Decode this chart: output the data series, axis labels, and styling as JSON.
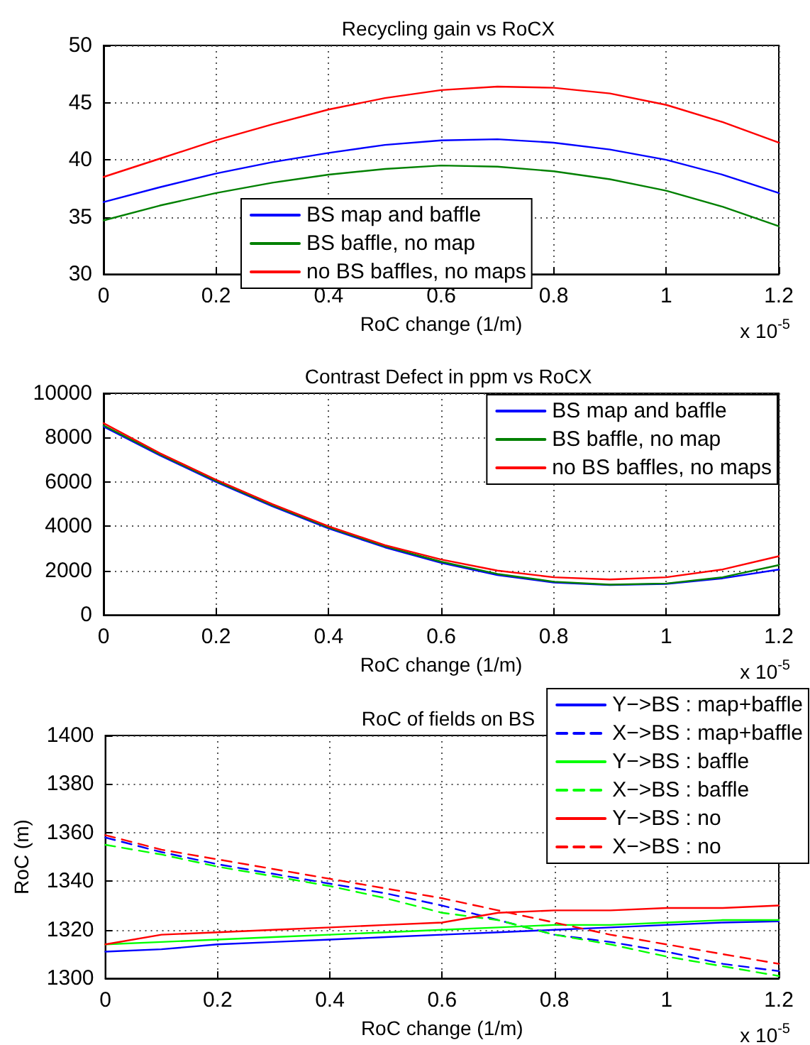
{
  "chart_data": [
    {
      "type": "line",
      "title": "Recycling gain vs RoCX",
      "xlabel": "RoC change (1/m)",
      "annotations": [
        "x 10$^{-5}$"
      ],
      "x": [
        0,
        0.1,
        0.2,
        0.3,
        0.4,
        0.5,
        0.6,
        0.7,
        0.8,
        0.9,
        1,
        1.1,
        1.2
      ],
      "series": [
        {
          "name": "BS map and baffle",
          "color": "#0000ff",
          "values": [
            36.3,
            37.6,
            38.8,
            39.8,
            40.6,
            41.3,
            41.7,
            41.8,
            41.5,
            40.9,
            40.0,
            38.7,
            37.1
          ]
        },
        {
          "name": "BS baffle, no map",
          "color": "#008000",
          "values": [
            34.7,
            36.0,
            37.1,
            38.0,
            38.7,
            39.2,
            39.5,
            39.4,
            39.0,
            38.3,
            37.3,
            35.9,
            34.2
          ]
        },
        {
          "name": "no BS baffles, no maps",
          "color": "#ff0000",
          "values": [
            38.5,
            40.1,
            41.7,
            43.1,
            44.4,
            45.4,
            46.1,
            46.4,
            46.3,
            45.8,
            44.8,
            43.3,
            41.5
          ]
        }
      ],
      "xlim": [
        0,
        1.2
      ],
      "xticks": [
        0,
        0.2,
        0.4,
        0.6,
        0.8,
        1,
        1.2
      ],
      "ylim": [
        30,
        50
      ],
      "yticks": [
        30,
        35,
        40,
        45,
        50
      ],
      "grid": true,
      "legend": "bottom",
      "marker": "none",
      "line_style": "solid"
    },
    {
      "type": "line",
      "title": "Contrast Defect in ppm vs RoCX",
      "xlabel": "RoC change (1/m)",
      "annotations": [
        "x 10$^{-5}$"
      ],
      "x": [
        0,
        0.1,
        0.2,
        0.3,
        0.4,
        0.5,
        0.6,
        0.7,
        0.8,
        0.9,
        1,
        1.1,
        1.2
      ],
      "series": [
        {
          "name": "BS map and baffle",
          "color": "#0000ff",
          "values": [
            8500,
            7200,
            6000,
            4900,
            3900,
            3050,
            2350,
            1800,
            1460,
            1350,
            1400,
            1650,
            2050
          ]
        },
        {
          "name": "BS baffle, no map",
          "color": "#008000",
          "values": [
            8550,
            7250,
            6050,
            4950,
            3950,
            3100,
            2400,
            1850,
            1500,
            1370,
            1420,
            1700,
            2250
          ]
        },
        {
          "name": "no BS baffles, no maps",
          "color": "#ff0000",
          "values": [
            8650,
            7300,
            6100,
            5000,
            4000,
            3150,
            2500,
            2000,
            1700,
            1600,
            1700,
            2050,
            2650
          ]
        }
      ],
      "xlim": [
        0,
        1.2
      ],
      "xticks": [
        0,
        0.2,
        0.4,
        0.6,
        0.8,
        1,
        1.2
      ],
      "ylim": [
        0,
        10000
      ],
      "yticks": [
        0,
        2000,
        4000,
        6000,
        8000,
        10000
      ],
      "grid": true,
      "legend": "top right",
      "marker": "none",
      "line_style": "solid"
    },
    {
      "type": "line",
      "title": "RoC of fields on BS",
      "xlabel": "RoC change (1/m)",
      "ylabel": "RoC (m)",
      "annotations": [
        "x 10$^{-5}$"
      ],
      "x": [
        0,
        0.1,
        0.2,
        0.3,
        0.4,
        0.5,
        0.6,
        0.7,
        0.8,
        0.9,
        1,
        1.1,
        1.2
      ],
      "series": [
        {
          "name": "Y−>BS : map+baffle",
          "color": "#0000ff",
          "values": [
            1311,
            1312,
            1314,
            1315,
            1316,
            1317,
            1318,
            1319,
            1320,
            1321,
            1322,
            1323,
            1323.5
          ]
        },
        {
          "name": "X−>BS : map+baffle",
          "color": "#0000ff",
          "line_style": "dashed",
          "values": [
            1358,
            1352,
            1347,
            1343,
            1339,
            1335,
            1330,
            1324,
            1318,
            1315,
            1311,
            1306,
            1303
          ]
        },
        {
          "name": "Y−>BS : baffle",
          "color": "#00ff00",
          "values": [
            1314,
            1315,
            1316,
            1317,
            1318,
            1319,
            1320,
            1321,
            1322,
            1322,
            1323,
            1324,
            1324
          ]
        },
        {
          "name": "X−>BS : baffle",
          "color": "#00ff00",
          "line_style": "dashed",
          "values": [
            1355,
            1351,
            1346,
            1342,
            1338,
            1333,
            1327,
            1324,
            1318,
            1314,
            1309,
            1305,
            1301
          ]
        },
        {
          "name": "Y−>BS : no",
          "color": "#ff0000",
          "values": [
            1314,
            1318,
            1319,
            1320,
            1321,
            1322,
            1323,
            1327,
            1328,
            1328,
            1329,
            1329,
            1330
          ]
        },
        {
          "name": "X−>BS : no",
          "color": "#ff0000",
          "line_style": "dashed",
          "values": [
            1359,
            1353,
            1349,
            1345,
            1341,
            1337,
            1333,
            1328,
            1323,
            1318,
            1314,
            1310,
            1306
          ]
        }
      ],
      "xlim": [
        0,
        1.2
      ],
      "xticks": [
        0,
        0.2,
        0.4,
        0.6,
        0.8,
        1,
        1.2
      ],
      "ylim": [
        1300,
        1400
      ],
      "yticks": [
        1300,
        1320,
        1340,
        1360,
        1380,
        1400
      ],
      "grid": true,
      "legend": "right",
      "marker": "none",
      "line_style": "solid"
    }
  ]
}
